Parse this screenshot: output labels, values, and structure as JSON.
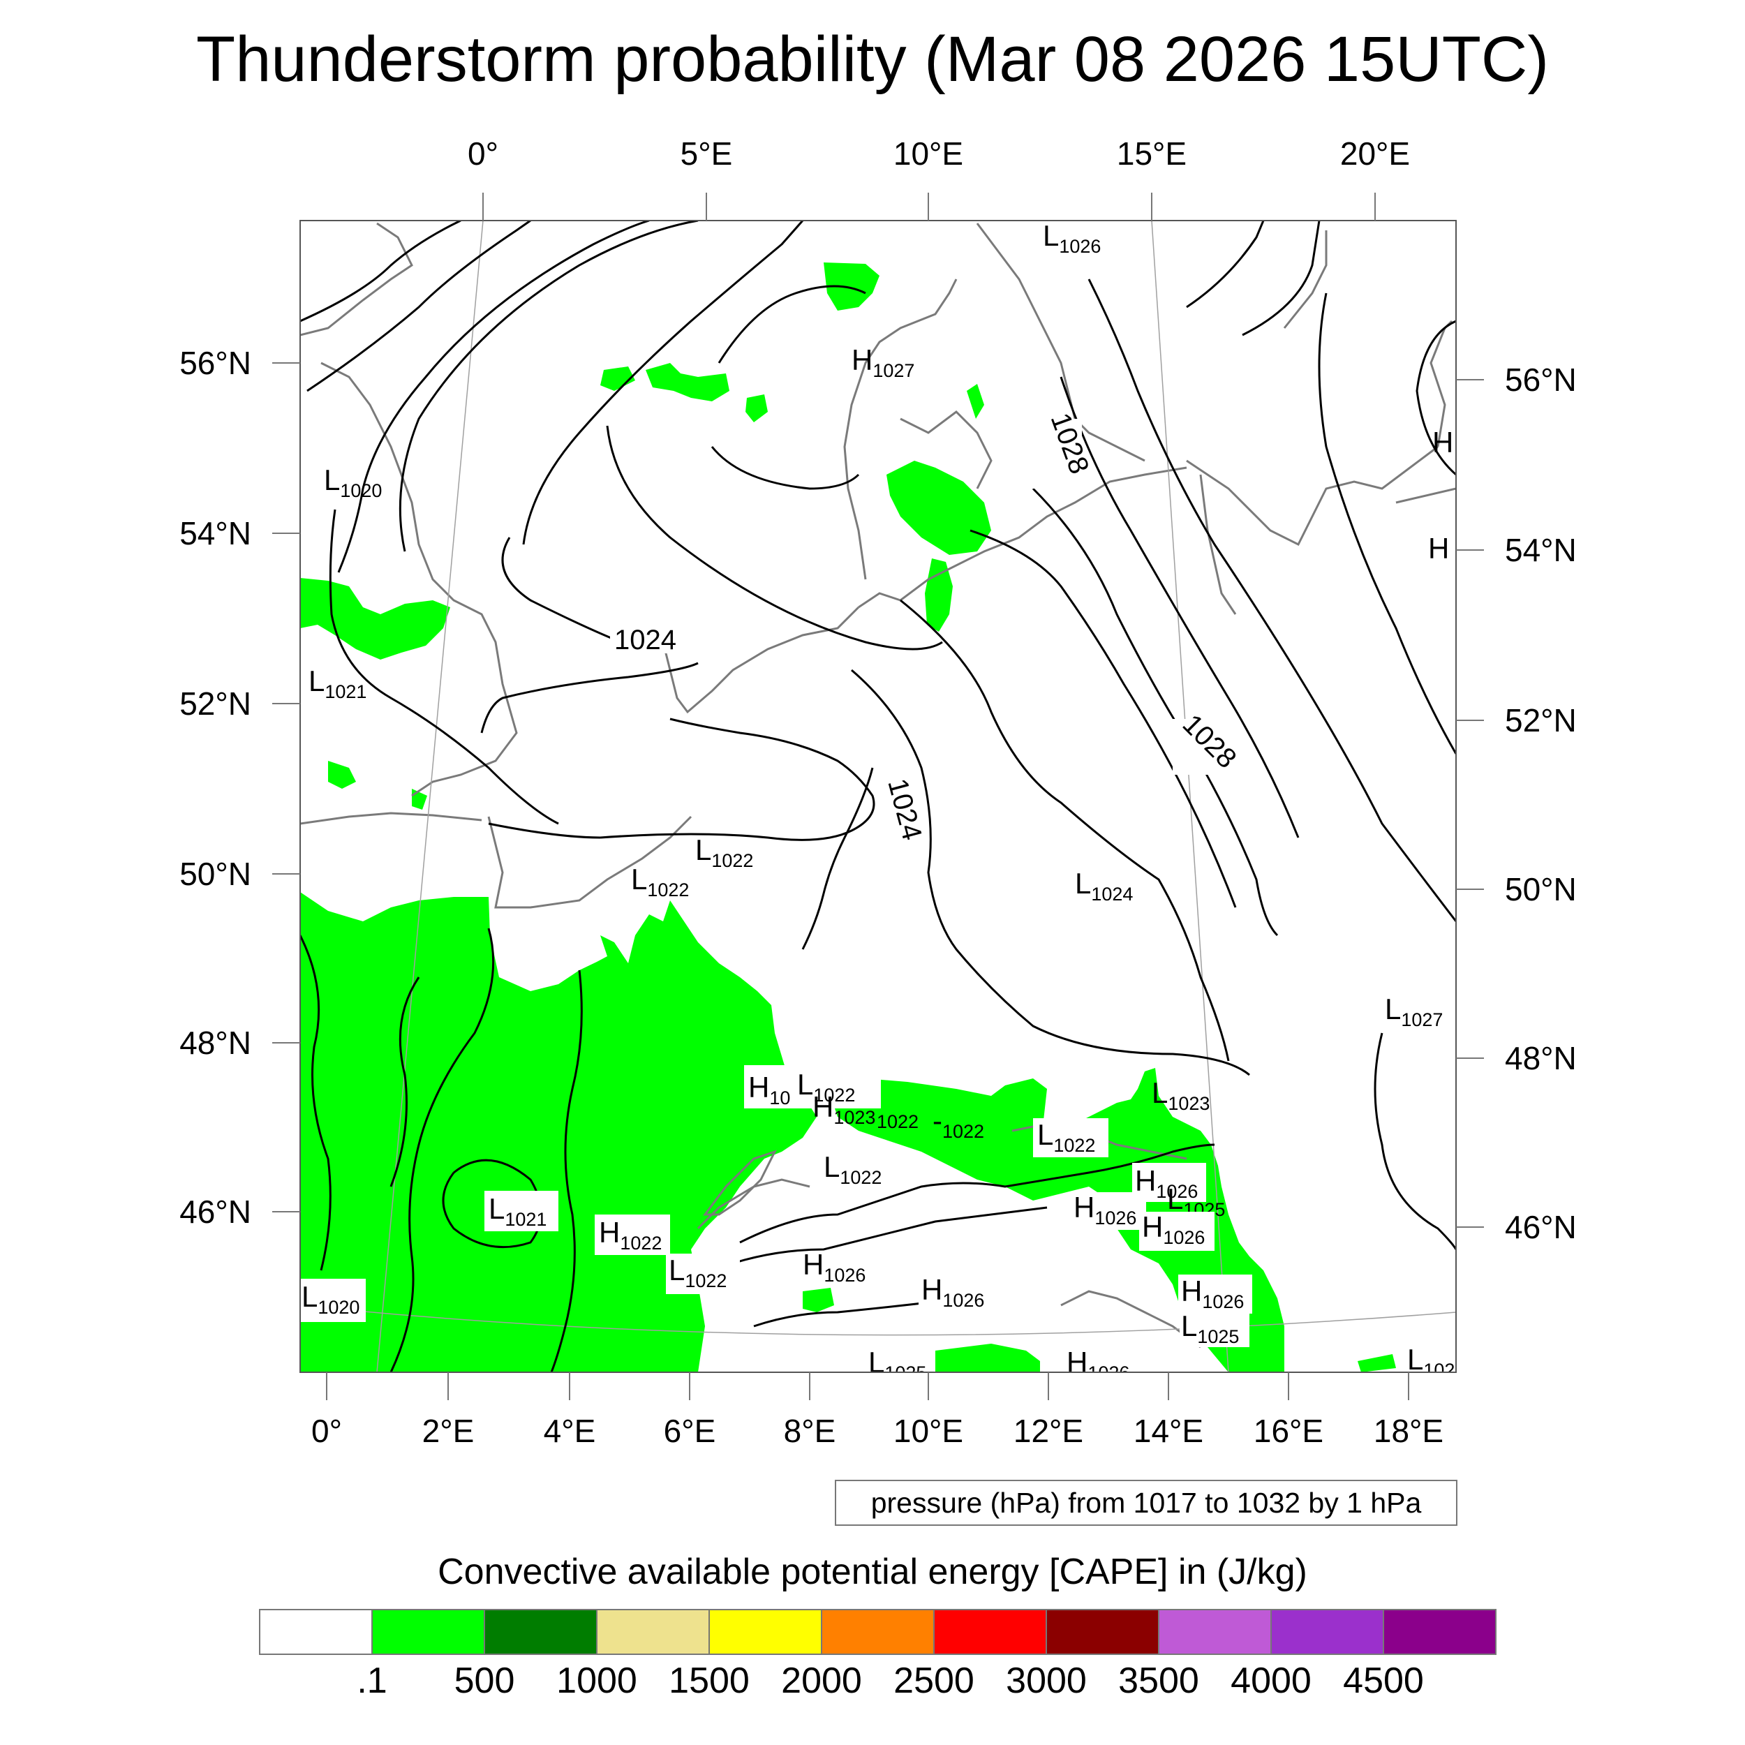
{
  "title": "Thunderstorm probability (Mar 08 2026 15UTC)",
  "top_lon_labels": [
    "0°",
    "5°E",
    "10°E",
    "15°E",
    "20°E"
  ],
  "bottom_lon_labels": [
    "0°",
    "2°E",
    "4°E",
    "6°E",
    "8°E",
    "10°E",
    "12°E",
    "14°E",
    "16°E",
    "18°E"
  ],
  "left_lat_labels": [
    "56°N",
    "54°N",
    "52°N",
    "50°N",
    "48°N",
    "46°N"
  ],
  "right_lat_labels": [
    "56°N",
    "54°N",
    "52°N",
    "50°N",
    "48°N",
    "46°N"
  ],
  "contour_labels": [
    "1024",
    "1024",
    "1028",
    "1028"
  ],
  "pressure_centers": [
    {
      "letter": "L",
      "value": "1026"
    },
    {
      "letter": "H",
      "value": "1027"
    },
    {
      "letter": "L",
      "value": "1020"
    },
    {
      "letter": "L",
      "value": "1021"
    },
    {
      "letter": "H",
      "value": ""
    },
    {
      "letter": "H",
      "value": ""
    },
    {
      "letter": "L",
      "value": "1022"
    },
    {
      "letter": "L",
      "value": "1022"
    },
    {
      "letter": "L",
      "value": "1024"
    },
    {
      "letter": "L",
      "value": "1027"
    },
    {
      "letter": "H",
      "value": "10"
    },
    {
      "letter": "L",
      "value": "1022"
    },
    {
      "letter": "H",
      "value": "1023"
    },
    {
      "letter": "",
      "value": "1022"
    },
    {
      "letter": "-",
      "value": "1022"
    },
    {
      "letter": "L",
      "value": "1023"
    },
    {
      "letter": "L",
      "value": "1022"
    },
    {
      "letter": "L",
      "value": "1022"
    },
    {
      "letter": "H",
      "value": "1026"
    },
    {
      "letter": "H",
      "value": "1026"
    },
    {
      "letter": "L",
      "value": "1025"
    },
    {
      "letter": "H",
      "value": "1026"
    },
    {
      "letter": "L",
      "value": "1021"
    },
    {
      "letter": "H",
      "value": "1022"
    },
    {
      "letter": "L",
      "value": "1022"
    },
    {
      "letter": "H",
      "value": "1026"
    },
    {
      "letter": "H",
      "value": "1026"
    },
    {
      "letter": "H",
      "value": "1026"
    },
    {
      "letter": "L",
      "value": "1025"
    },
    {
      "letter": "L",
      "value": "1020"
    },
    {
      "letter": "L",
      "value": "1025"
    },
    {
      "letter": "H",
      "value": "1026"
    },
    {
      "letter": "L",
      "value": "102"
    }
  ],
  "info_text": "pressure (hPa) from 1017 to 1032 by 1 hPa",
  "colorbar": {
    "title": "Convective available potential energy [CAPE] in (J/kg)",
    "colors": [
      "#ffffff",
      "#00ff00",
      "#007d00",
      "#eee28e",
      "#ffff00",
      "#ff8000",
      "#ff0000",
      "#8b0000",
      "#bf5ad6",
      "#9b30cc",
      "#8b008b"
    ],
    "labels": [
      ".1",
      "500",
      "1000",
      "1500",
      "2000",
      "2500",
      "3000",
      "3500",
      "4000",
      "4500"
    ]
  }
}
